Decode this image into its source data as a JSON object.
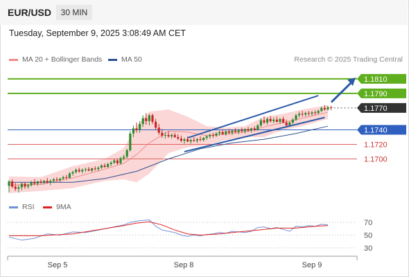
{
  "header": {
    "symbol": "EUR/USD",
    "timeframe": "30 MIN",
    "timestamp": "Tuesday, September 9, 2025 3:08:49 AM CET"
  },
  "legend": {
    "ma20_label": "MA 20 + Bollinger Bands",
    "ma50_label": "MA 50",
    "rsi_label": "RSI",
    "rsi_ma_label": "9MA",
    "copyright": "Research © 2025 Trading Central"
  },
  "colors": {
    "candle_up": "#2f8a2f",
    "candle_down": "#c62828",
    "bollinger_fill": "#fcd7d7",
    "ma20": "#f08a8a",
    "ma50": "#2b4f8f",
    "resistance": "#5fae1e",
    "support": "#e06060",
    "pivot": "#2f5fbf",
    "channel": "#2b5aa8",
    "rsi": "#6f8fd6",
    "rsi_ma": "#e02020"
  },
  "chart_data": {
    "type": "candlestick",
    "x_ticks": [
      "Sep 5",
      "Sep 8",
      "Sep 9"
    ],
    "ylim": [
      1.1652,
      1.1827
    ],
    "price_levels": [
      {
        "value": 1.181,
        "label": "1.1810",
        "kind": "resistance"
      },
      {
        "value": 1.179,
        "label": "1.1790",
        "kind": "resistance"
      },
      {
        "value": 1.177,
        "label": "1.1770",
        "kind": "last"
      },
      {
        "value": 1.174,
        "label": "1.1740",
        "kind": "pivot"
      },
      {
        "value": 1.172,
        "label": "1.1720",
        "kind": "support"
      },
      {
        "value": 1.17,
        "label": "1.1700",
        "kind": "support"
      }
    ],
    "rsi_ticks": [
      70,
      50,
      30
    ],
    "rsi_ylim": [
      20,
      80
    ],
    "candles": [
      [
        1.1663,
        1.1671,
        1.1654,
        1.1669
      ],
      [
        1.1669,
        1.1672,
        1.166,
        1.1662
      ],
      [
        1.1662,
        1.1667,
        1.1656,
        1.1659
      ],
      [
        1.1659,
        1.1664,
        1.1654,
        1.1661
      ],
      [
        1.1661,
        1.1668,
        1.1657,
        1.1666
      ],
      [
        1.1666,
        1.1668,
        1.1659,
        1.1662
      ],
      [
        1.1662,
        1.1666,
        1.1659,
        1.1664
      ],
      [
        1.1664,
        1.167,
        1.1662,
        1.1668
      ],
      [
        1.1668,
        1.1672,
        1.1664,
        1.1666
      ],
      [
        1.1666,
        1.167,
        1.1663,
        1.1669
      ],
      [
        1.1669,
        1.1672,
        1.1665,
        1.1668
      ],
      [
        1.1668,
        1.1671,
        1.1665,
        1.167
      ],
      [
        1.167,
        1.1674,
        1.1666,
        1.1668
      ],
      [
        1.1668,
        1.1672,
        1.1664,
        1.167
      ],
      [
        1.167,
        1.1674,
        1.1667,
        1.1672
      ],
      [
        1.1672,
        1.1675,
        1.1669,
        1.1671
      ],
      [
        1.1671,
        1.1674,
        1.1668,
        1.1673
      ],
      [
        1.1673,
        1.1677,
        1.1671,
        1.1675
      ],
      [
        1.1675,
        1.1678,
        1.1672,
        1.1674
      ],
      [
        1.1674,
        1.1682,
        1.1673,
        1.168
      ],
      [
        1.168,
        1.1684,
        1.1677,
        1.1682
      ],
      [
        1.1682,
        1.1687,
        1.168,
        1.1685
      ],
      [
        1.1685,
        1.1688,
        1.1681,
        1.1683
      ],
      [
        1.1683,
        1.1687,
        1.168,
        1.1685
      ],
      [
        1.1685,
        1.1688,
        1.1682,
        1.1686
      ],
      [
        1.1686,
        1.1689,
        1.1683,
        1.1684
      ],
      [
        1.1684,
        1.1688,
        1.1682,
        1.1687
      ],
      [
        1.1687,
        1.169,
        1.1684,
        1.1686
      ],
      [
        1.1686,
        1.169,
        1.1683,
        1.1688
      ],
      [
        1.1688,
        1.1693,
        1.1686,
        1.1691
      ],
      [
        1.1691,
        1.1694,
        1.1688,
        1.1689
      ],
      [
        1.1689,
        1.1695,
        1.1688,
        1.1693
      ],
      [
        1.1693,
        1.1697,
        1.169,
        1.1695
      ],
      [
        1.1695,
        1.17,
        1.1693,
        1.1698
      ],
      [
        1.1698,
        1.17,
        1.1692,
        1.1694
      ],
      [
        1.1694,
        1.1703,
        1.1692,
        1.1701
      ],
      [
        1.1701,
        1.1706,
        1.1698,
        1.1703
      ],
      [
        1.1703,
        1.1714,
        1.1701,
        1.1712
      ],
      [
        1.1712,
        1.1738,
        1.171,
        1.1735
      ],
      [
        1.1735,
        1.1746,
        1.173,
        1.1742
      ],
      [
        1.1742,
        1.175,
        1.1736,
        1.174
      ],
      [
        1.174,
        1.1752,
        1.1736,
        1.1748
      ],
      [
        1.1748,
        1.176,
        1.1744,
        1.1756
      ],
      [
        1.1756,
        1.1763,
        1.1747,
        1.1752
      ],
      [
        1.1752,
        1.1762,
        1.1746,
        1.176
      ],
      [
        1.176,
        1.1762,
        1.1748,
        1.1751
      ],
      [
        1.1751,
        1.1755,
        1.174,
        1.1743
      ],
      [
        1.1743,
        1.1748,
        1.1733,
        1.1736
      ],
      [
        1.1736,
        1.1741,
        1.1729,
        1.1732
      ],
      [
        1.1732,
        1.1737,
        1.1728,
        1.1733
      ],
      [
        1.1733,
        1.1738,
        1.1729,
        1.1731
      ],
      [
        1.1731,
        1.1735,
        1.1728,
        1.1733
      ],
      [
        1.1733,
        1.1736,
        1.1729,
        1.173
      ],
      [
        1.173,
        1.1734,
        1.1726,
        1.1728
      ],
      [
        1.1728,
        1.1732,
        1.1723,
        1.1725
      ],
      [
        1.1725,
        1.1729,
        1.1721,
        1.1727
      ],
      [
        1.1727,
        1.1731,
        1.1723,
        1.1724
      ],
      [
        1.1724,
        1.1728,
        1.1721,
        1.1726
      ],
      [
        1.1726,
        1.173,
        1.1723,
        1.1725
      ],
      [
        1.1725,
        1.1729,
        1.1722,
        1.1727
      ],
      [
        1.1727,
        1.1731,
        1.1724,
        1.1726
      ],
      [
        1.1726,
        1.173,
        1.1724,
        1.1729
      ],
      [
        1.1729,
        1.1733,
        1.1726,
        1.1731
      ],
      [
        1.1731,
        1.1735,
        1.1728,
        1.1733
      ],
      [
        1.1733,
        1.1736,
        1.1729,
        1.1732
      ],
      [
        1.1732,
        1.1737,
        1.173,
        1.1735
      ],
      [
        1.1735,
        1.1739,
        1.1732,
        1.1737
      ],
      [
        1.1737,
        1.174,
        1.1733,
        1.1734
      ],
      [
        1.1734,
        1.1739,
        1.1732,
        1.1738
      ],
      [
        1.1738,
        1.1741,
        1.1734,
        1.1736
      ],
      [
        1.1736,
        1.174,
        1.1733,
        1.1739
      ],
      [
        1.1739,
        1.1742,
        1.1735,
        1.1737
      ],
      [
        1.1737,
        1.1741,
        1.1734,
        1.174
      ],
      [
        1.174,
        1.1743,
        1.1736,
        1.1738
      ],
      [
        1.1738,
        1.1742,
        1.1735,
        1.1741
      ],
      [
        1.1741,
        1.1744,
        1.1737,
        1.1739
      ],
      [
        1.1739,
        1.1743,
        1.1736,
        1.1742
      ],
      [
        1.1742,
        1.1745,
        1.1738,
        1.174
      ],
      [
        1.174,
        1.1748,
        1.1739,
        1.1746
      ],
      [
        1.1746,
        1.1756,
        1.1744,
        1.1753
      ],
      [
        1.1753,
        1.1758,
        1.1748,
        1.175
      ],
      [
        1.175,
        1.1757,
        1.1747,
        1.1755
      ],
      [
        1.1755,
        1.1759,
        1.175,
        1.1752
      ],
      [
        1.1752,
        1.1757,
        1.1749,
        1.1754
      ],
      [
        1.1754,
        1.1758,
        1.175,
        1.1751
      ],
      [
        1.1751,
        1.1756,
        1.1748,
        1.1755
      ],
      [
        1.1755,
        1.1758,
        1.1749,
        1.175
      ],
      [
        1.175,
        1.1754,
        1.1743,
        1.1746
      ],
      [
        1.1746,
        1.1752,
        1.1744,
        1.175
      ],
      [
        1.175,
        1.1756,
        1.1748,
        1.1754
      ],
      [
        1.1754,
        1.1762,
        1.1752,
        1.176
      ],
      [
        1.176,
        1.1765,
        1.1757,
        1.1762
      ],
      [
        1.1762,
        1.1766,
        1.1758,
        1.1761
      ],
      [
        1.1761,
        1.1765,
        1.1758,
        1.1763
      ],
      [
        1.1763,
        1.1766,
        1.1759,
        1.1762
      ],
      [
        1.1762,
        1.1766,
        1.1759,
        1.1764
      ],
      [
        1.1764,
        1.1767,
        1.176,
        1.1763
      ],
      [
        1.1763,
        1.1768,
        1.1761,
        1.1766
      ],
      [
        1.1766,
        1.1772,
        1.1764,
        1.177
      ],
      [
        1.177,
        1.1774,
        1.1766,
        1.1768
      ],
      [
        1.1768,
        1.1773,
        1.1766,
        1.1771
      ],
      [
        1.1771,
        1.1773,
        1.1767,
        1.177
      ]
    ],
    "bollinger_upper": [
      [
        0,
        1.1676
      ],
      [
        10,
        1.1675
      ],
      [
        20,
        1.169
      ],
      [
        30,
        1.17
      ],
      [
        36,
        1.1715
      ],
      [
        40,
        1.1745
      ],
      [
        44,
        1.1765
      ],
      [
        50,
        1.1768
      ],
      [
        56,
        1.1758
      ],
      [
        62,
        1.1745
      ],
      [
        68,
        1.1743
      ],
      [
        74,
        1.1745
      ],
      [
        80,
        1.1758
      ],
      [
        86,
        1.1762
      ],
      [
        92,
        1.1768
      ],
      [
        100,
        1.1774
      ]
    ],
    "bollinger_lower": [
      [
        0,
        1.1653
      ],
      [
        10,
        1.1656
      ],
      [
        20,
        1.166
      ],
      [
        30,
        1.167
      ],
      [
        36,
        1.1672
      ],
      [
        40,
        1.1668
      ],
      [
        44,
        1.168
      ],
      [
        50,
        1.1708
      ],
      [
        56,
        1.1716
      ],
      [
        62,
        1.1719
      ],
      [
        68,
        1.1726
      ],
      [
        74,
        1.173
      ],
      [
        80,
        1.173
      ],
      [
        86,
        1.174
      ],
      [
        92,
        1.1745
      ],
      [
        100,
        1.1755
      ]
    ],
    "ma20": [
      [
        0,
        1.1664
      ],
      [
        10,
        1.1665
      ],
      [
        20,
        1.1674
      ],
      [
        30,
        1.1686
      ],
      [
        36,
        1.1694
      ],
      [
        40,
        1.1706
      ],
      [
        44,
        1.1722
      ],
      [
        50,
        1.1738
      ],
      [
        56,
        1.1737
      ],
      [
        62,
        1.1732
      ],
      [
        68,
        1.1734
      ],
      [
        74,
        1.1737
      ],
      [
        80,
        1.1744
      ],
      [
        86,
        1.175
      ],
      [
        92,
        1.1756
      ],
      [
        100,
        1.1764
      ]
    ],
    "ma50": [
      [
        0,
        1.1668
      ],
      [
        20,
        1.1668
      ],
      [
        30,
        1.1673
      ],
      [
        40,
        1.1683
      ],
      [
        50,
        1.17
      ],
      [
        60,
        1.1714
      ],
      [
        70,
        1.1722
      ],
      [
        80,
        1.1727
      ],
      [
        90,
        1.1735
      ],
      [
        100,
        1.1745
      ]
    ],
    "channel_upper": [
      [
        56,
        1.1729
      ],
      [
        97,
        1.1787
      ]
    ],
    "channel_lower": [
      [
        55,
        1.171
      ],
      [
        99,
        1.1757
      ]
    ],
    "rsi": [
      [
        0,
        47
      ],
      [
        4,
        42
      ],
      [
        8,
        45
      ],
      [
        12,
        52
      ],
      [
        16,
        50
      ],
      [
        20,
        55
      ],
      [
        24,
        54
      ],
      [
        28,
        58
      ],
      [
        32,
        62
      ],
      [
        36,
        66
      ],
      [
        38,
        70
      ],
      [
        40,
        72
      ],
      [
        42,
        73
      ],
      [
        44,
        74
      ],
      [
        46,
        64
      ],
      [
        48,
        58
      ],
      [
        50,
        56
      ],
      [
        52,
        54
      ],
      [
        54,
        50
      ],
      [
        56,
        48
      ],
      [
        58,
        50
      ],
      [
        60,
        49
      ],
      [
        62,
        51
      ],
      [
        64,
        52
      ],
      [
        66,
        54
      ],
      [
        68,
        53
      ],
      [
        70,
        56
      ],
      [
        72,
        55
      ],
      [
        74,
        54
      ],
      [
        76,
        56
      ],
      [
        78,
        62
      ],
      [
        80,
        63
      ],
      [
        82,
        60
      ],
      [
        84,
        62
      ],
      [
        86,
        59
      ],
      [
        88,
        56
      ],
      [
        90,
        64
      ],
      [
        92,
        63
      ],
      [
        94,
        65
      ],
      [
        96,
        64
      ],
      [
        98,
        67
      ],
      [
        100,
        66
      ]
    ],
    "rsi_ma": [
      [
        0,
        49
      ],
      [
        10,
        49
      ],
      [
        20,
        52
      ],
      [
        30,
        60
      ],
      [
        36,
        65
      ],
      [
        40,
        69
      ],
      [
        44,
        71
      ],
      [
        48,
        66
      ],
      [
        52,
        58
      ],
      [
        56,
        52
      ],
      [
        60,
        50
      ],
      [
        66,
        52
      ],
      [
        72,
        55
      ],
      [
        78,
        58
      ],
      [
        84,
        61
      ],
      [
        90,
        61
      ],
      [
        96,
        64
      ],
      [
        100,
        65
      ]
    ]
  }
}
